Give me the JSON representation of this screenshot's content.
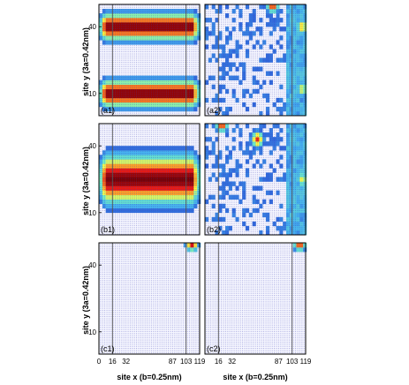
{
  "chart_data": {
    "type": "heatmap",
    "grid": {
      "x_sites": 119,
      "y_sites": 50
    },
    "x_ticks": [
      0,
      16,
      32,
      87,
      103,
      119
    ],
    "y_ticks": [
      10,
      40
    ],
    "vertical_lines_at_site_x": [
      16,
      103
    ],
    "xlabel": "site x (b=0.25nm)",
    "ylabel": "site y (3a=0.42nm)",
    "colormap": [
      "#1c22c8",
      "#45b3f0",
      "#6ef0c8",
      "#ffff40",
      "#ff9020",
      "#e81010",
      "#7a0000"
    ],
    "panels": [
      {
        "label": "(a1)",
        "pattern": "two-bands",
        "band_centers_y": [
          40,
          10
        ],
        "band_width_y": 5
      },
      {
        "label": "(a2)",
        "pattern": "edge-current",
        "hotspots": [
          {
            "x": 80,
            "y": 50,
            "v": 0.9
          },
          {
            "x": 115,
            "y": 40,
            "v": 0.6
          },
          {
            "x": 115,
            "y": 12,
            "v": 0.5
          }
        ]
      },
      {
        "label": "(b1)",
        "pattern": "single-band",
        "band_centers_y": [
          25
        ],
        "band_width_y": 9
      },
      {
        "label": "(b2)",
        "pattern": "edge-current",
        "hotspots": [
          {
            "x": 20,
            "y": 50,
            "v": 0.9
          },
          {
            "x": 62,
            "y": 43,
            "v": 0.8
          },
          {
            "x": 115,
            "y": 25,
            "v": 0.5
          }
        ]
      },
      {
        "label": "(c1)",
        "pattern": "edge-top-right",
        "hotspots": [
          {
            "x": 110,
            "y": 50,
            "v": 0.95
          }
        ]
      },
      {
        "label": "(c2)",
        "pattern": "edge-top-right",
        "hotspots": [
          {
            "x": 112,
            "y": 50,
            "v": 0.9
          }
        ]
      }
    ]
  }
}
